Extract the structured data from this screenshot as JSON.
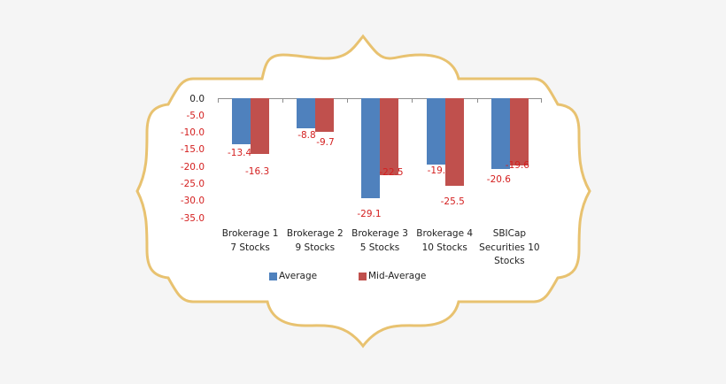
{
  "colors": {
    "average": "#4f81bd",
    "mid_average": "#c0504d",
    "frame_stroke": "#e8c270",
    "background": "#f5f5f5",
    "label_red": "#d42020"
  },
  "chart_data": {
    "type": "bar",
    "title": "",
    "xlabel": "",
    "ylabel": "",
    "ylim": [
      -35,
      0
    ],
    "yticks": [
      "0.0",
      "-5.0",
      "-10.0",
      "-15.0",
      "-20.0",
      "-25.0",
      "-30.0",
      "-35.0"
    ],
    "grid": false,
    "legend_position": "bottom",
    "categories": [
      "Brokerage 1 7 Stocks",
      "Brokerage 2 9 Stocks",
      "Brokerage 3 5 Stocks",
      "Brokerage 4 10 Stocks",
      "SBICap Securities 10 Stocks"
    ],
    "category_lines": [
      [
        "Brokerage 1",
        "7 Stocks"
      ],
      [
        "Brokerage 2",
        "9 Stocks"
      ],
      [
        "Brokerage 3",
        "5 Stocks"
      ],
      [
        "Brokerage 4",
        "10 Stocks"
      ],
      [
        "SBICap",
        "Securities 10",
        "Stocks"
      ]
    ],
    "series": [
      {
        "name": "Average",
        "values": [
          -13.4,
          -8.8,
          -29.1,
          -19.2,
          -20.6
        ]
      },
      {
        "name": "Mid-Average",
        "values": [
          -16.3,
          -9.7,
          -22.5,
          -25.5,
          -19.6
        ]
      }
    ],
    "data_labels": {
      "Average": [
        "-13.4",
        "-8.8",
        "-29.1",
        "-19.2",
        "-20.6"
      ],
      "Mid-Average": [
        "-16.3",
        "-9.7",
        "-22.5",
        "-25.5",
        "-19.6"
      ]
    }
  },
  "legend": {
    "items": [
      {
        "label": "Average"
      },
      {
        "label": "Mid-Average"
      }
    ]
  }
}
